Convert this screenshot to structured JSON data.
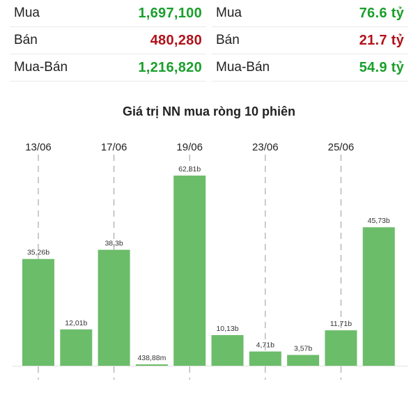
{
  "stats": {
    "left": [
      {
        "label": "Mua",
        "value": "1,697,100",
        "color": "#1a9f2b"
      },
      {
        "label": "Bán",
        "value": "480,280",
        "color": "#b0121b"
      },
      {
        "label": "Mua-Bán",
        "value": "1,216,820",
        "color": "#1a9f2b"
      }
    ],
    "right": [
      {
        "label": "Mua",
        "value": "76.6 tỷ",
        "color": "#1a9f2b"
      },
      {
        "label": "Bán",
        "value": "21.7 tỷ",
        "color": "#b0121b"
      },
      {
        "label": "Mua-Bán",
        "value": "54.9 tỷ",
        "color": "#1a9f2b"
      }
    ]
  },
  "chart_data": {
    "type": "bar",
    "title": "Giá trị NN mua ròng 10 phiên",
    "bar_color": "#6cbd6a",
    "date_labels": [
      "13/06",
      "17/06",
      "19/06",
      "23/06",
      "25/06"
    ],
    "date_label_indices": [
      0,
      2,
      4,
      6,
      8
    ],
    "unit": "billion VND",
    "values": [
      35.26,
      12.01,
      38.3,
      0.43888,
      62.81,
      10.13,
      4.71,
      3.57,
      11.71,
      45.73
    ],
    "value_labels": [
      "35,26b",
      "12,01b",
      "38,3b",
      "438,88m",
      "62,81b",
      "10,13b",
      "4,71b",
      "3,57b",
      "11,71b",
      "45,73b"
    ],
    "ylim": [
      0,
      62.81
    ],
    "grid": false
  }
}
